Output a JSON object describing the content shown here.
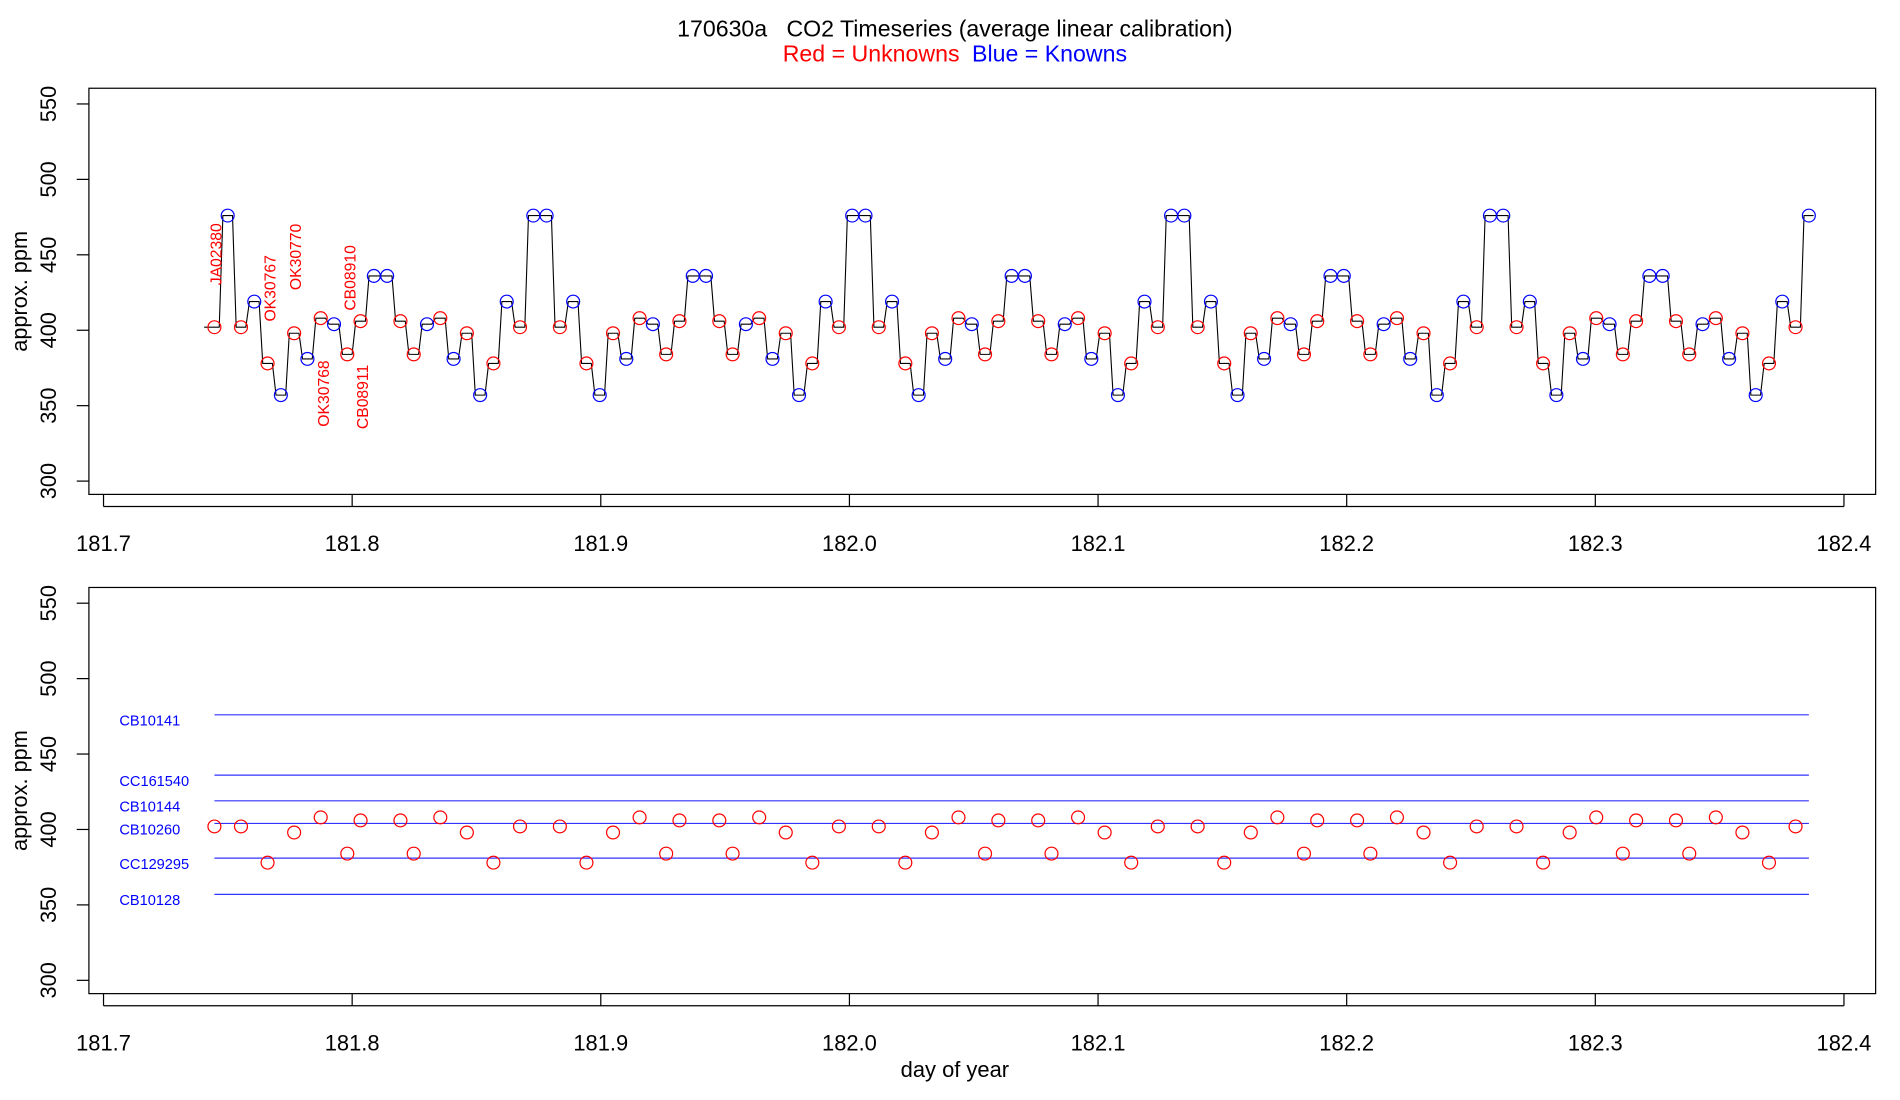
{
  "chart_data": [
    {
      "type": "line",
      "title": "170630a   CO2 Timeseries (average linear calibration)",
      "subtitle": {
        "red": "Red = Unknowns",
        "blue": "Blue = Knowns"
      },
      "xlabel": "",
      "ylabel": "approx. ppm",
      "xlim": [
        181.7,
        182.4
      ],
      "ylim": [
        300,
        550
      ],
      "xticks": [
        "181.7",
        "181.8",
        "181.9",
        "182.0",
        "182.1",
        "182.2",
        "182.3",
        "182.4"
      ],
      "yticks": [
        "300",
        "350",
        "400",
        "450",
        "500",
        "550"
      ],
      "x_start": 181.7446,
      "x_step": 0.005344,
      "values": [
        402,
        476,
        402,
        419,
        378,
        357,
        398,
        381,
        408,
        404,
        384,
        406,
        436,
        436,
        406,
        384,
        404,
        408,
        381,
        398,
        357,
        378,
        419,
        402,
        476,
        476,
        402,
        419,
        378,
        357,
        398,
        381,
        408,
        404,
        384,
        406,
        436,
        436,
        406,
        384,
        404,
        408,
        381,
        398,
        357,
        378,
        419,
        402,
        476,
        476,
        402,
        419,
        378,
        357,
        398,
        381,
        408,
        404,
        384,
        406,
        436,
        436,
        406,
        384,
        404,
        408,
        381,
        398,
        357,
        378,
        419,
        402,
        476,
        476,
        402,
        419,
        378,
        357,
        398,
        381,
        408,
        404,
        384,
        406,
        436,
        436,
        406,
        384,
        404,
        408,
        381,
        398,
        357,
        378,
        419,
        402,
        476,
        476,
        402,
        419,
        378,
        357,
        398,
        381,
        408,
        404,
        384,
        406,
        436,
        436,
        406,
        384,
        404,
        408,
        381,
        398,
        357,
        378,
        419,
        402,
        476
      ],
      "kinds": "RBRBRBRBRBRRBBRRBRBRBRBRBBRBRBRBRBRRBBRRBRBRBRBRBBRBRBRBRBRRBBRRBRBRBRBRBBRBRBRBRBRRBBRRBRBRBRBRBBRBRBRBRBRRBBRRBRBRBRBRB",
      "colors": {
        "unknown": "#ff0000",
        "known": "#0000ff",
        "line": "#000000"
      },
      "annotations": [
        "JA02380",
        "OK30767",
        "OK30770",
        "OK30768",
        "CB08910",
        "CB08911"
      ]
    },
    {
      "type": "scatter",
      "xlabel": "day of year",
      "ylabel": "approx. ppm",
      "xlim": [
        181.7,
        182.4
      ],
      "ylim": [
        300,
        550
      ],
      "xticks": [
        "181.7",
        "181.8",
        "181.9",
        "182.0",
        "182.1",
        "182.2",
        "182.3",
        "182.4"
      ],
      "yticks": [
        "300",
        "350",
        "400",
        "450",
        "500",
        "550"
      ],
      "standards": [
        {
          "name": "CB10141",
          "value": 476
        },
        {
          "name": "CC161540",
          "value": 436
        },
        {
          "name": "CB10144",
          "value": 419
        },
        {
          "name": "CB10260",
          "value": 404
        },
        {
          "name": "CC129295",
          "value": 381
        },
        {
          "name": "CB10128",
          "value": 357
        }
      ],
      "standards_x": [
        181.7446,
        182.3859
      ],
      "unknowns_note": "red circles = unknown samples from panel 1"
    }
  ]
}
